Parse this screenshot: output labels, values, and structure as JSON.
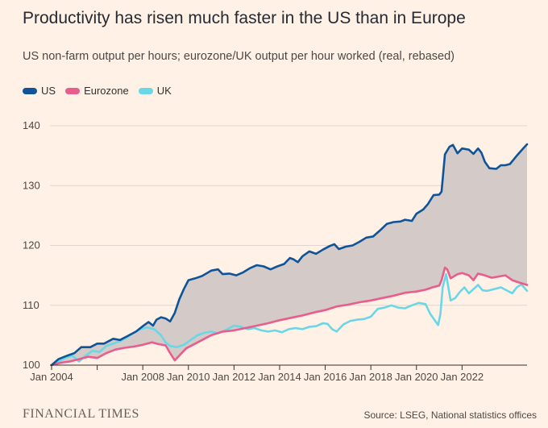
{
  "title": "Productivity has risen much faster in the US than in Europe",
  "subtitle": "US non-farm output per hours; eurozone/UK output per hour worked (real, rebased)",
  "legend": [
    {
      "label": "US",
      "color": "#0f5499"
    },
    {
      "label": "Eurozone",
      "color": "#e95d8c"
    },
    {
      "label": "UK",
      "color": "#6ad7e6"
    }
  ],
  "source": "Source: LSEG, National statistics offices",
  "publisher": "FINANCIAL TIMES",
  "colors": {
    "background": "#fff1e5",
    "band_fill": "#d4cbc8",
    "gridline": "#e0d6cd",
    "axis": "#33302e"
  },
  "chart_data": {
    "type": "line",
    "title": "Productivity has risen much faster in the US than in Europe",
    "ylim": [
      100,
      140
    ],
    "yticks": [
      100,
      110,
      120,
      130,
      140
    ],
    "xlim": [
      2004.0,
      2023.9
    ],
    "xticks": [
      {
        "value": 2004.0,
        "label": "Jan 2004"
      },
      {
        "value": 2006.0,
        "label": ""
      },
      {
        "value": 2008.0,
        "label": "Jan 2008"
      },
      {
        "value": 2010.0,
        "label": "Jan 2010"
      },
      {
        "value": 2012.0,
        "label": "Jan 2012"
      },
      {
        "value": 2014.0,
        "label": "Jan 2014"
      },
      {
        "value": 2016.0,
        "label": "Jan 2016"
      },
      {
        "value": 2018.0,
        "label": "Jan 2018"
      },
      {
        "value": 2020.0,
        "label": "Jan 2020"
      },
      {
        "value": 2022.0,
        "label": "Jan 2022"
      }
    ],
    "grid": true,
    "shaded_band_between": [
      "US",
      "Eurozone"
    ],
    "series": [
      {
        "name": "US",
        "color": "#0f5499",
        "points": [
          [
            2004.0,
            100.0
          ],
          [
            2004.3,
            101.0
          ],
          [
            2004.7,
            101.6
          ],
          [
            2005.0,
            102.0
          ],
          [
            2005.3,
            103.0
          ],
          [
            2005.7,
            103.0
          ],
          [
            2006.0,
            103.6
          ],
          [
            2006.3,
            103.6
          ],
          [
            2006.7,
            104.4
          ],
          [
            2007.0,
            104.2
          ],
          [
            2007.3,
            104.8
          ],
          [
            2007.7,
            105.6
          ],
          [
            2008.0,
            106.5
          ],
          [
            2008.25,
            107.2
          ],
          [
            2008.45,
            106.6
          ],
          [
            2008.6,
            107.6
          ],
          [
            2008.8,
            108.0
          ],
          [
            2009.0,
            107.8
          ],
          [
            2009.2,
            107.3
          ],
          [
            2009.4,
            108.7
          ],
          [
            2009.6,
            111.0
          ],
          [
            2009.8,
            112.7
          ],
          [
            2010.0,
            114.2
          ],
          [
            2010.3,
            114.5
          ],
          [
            2010.6,
            114.9
          ],
          [
            2011.0,
            115.8
          ],
          [
            2011.3,
            116.0
          ],
          [
            2011.5,
            115.2
          ],
          [
            2011.8,
            115.3
          ],
          [
            2012.1,
            115.0
          ],
          [
            2012.4,
            115.5
          ],
          [
            2012.7,
            116.2
          ],
          [
            2013.0,
            116.7
          ],
          [
            2013.3,
            116.5
          ],
          [
            2013.6,
            116.0
          ],
          [
            2013.9,
            116.5
          ],
          [
            2014.2,
            116.9
          ],
          [
            2014.45,
            117.9
          ],
          [
            2014.6,
            117.7
          ],
          [
            2014.8,
            117.2
          ],
          [
            2015.0,
            118.2
          ],
          [
            2015.3,
            119.0
          ],
          [
            2015.6,
            118.6
          ],
          [
            2015.9,
            119.3
          ],
          [
            2016.2,
            119.9
          ],
          [
            2016.4,
            120.2
          ],
          [
            2016.6,
            119.4
          ],
          [
            2016.9,
            119.8
          ],
          [
            2017.2,
            120.0
          ],
          [
            2017.5,
            120.6
          ],
          [
            2017.8,
            121.3
          ],
          [
            2018.1,
            121.5
          ],
          [
            2018.4,
            122.5
          ],
          [
            2018.7,
            123.6
          ],
          [
            2019.0,
            123.9
          ],
          [
            2019.3,
            124.0
          ],
          [
            2019.5,
            124.3
          ],
          [
            2019.8,
            124.1
          ],
          [
            2020.0,
            125.3
          ],
          [
            2020.3,
            126.0
          ],
          [
            2020.5,
            126.9
          ],
          [
            2020.75,
            128.4
          ],
          [
            2021.0,
            128.5
          ],
          [
            2021.1,
            129.0
          ],
          [
            2021.25,
            135.2
          ],
          [
            2021.45,
            136.5
          ],
          [
            2021.6,
            136.8
          ],
          [
            2021.8,
            135.4
          ],
          [
            2022.0,
            136.2
          ],
          [
            2022.3,
            136.0
          ],
          [
            2022.5,
            135.3
          ],
          [
            2022.7,
            136.2
          ],
          [
            2022.85,
            135.5
          ],
          [
            2023.0,
            134.0
          ],
          [
            2023.2,
            132.9
          ],
          [
            2023.5,
            132.8
          ],
          [
            2023.7,
            133.4
          ],
          [
            2023.9,
            133.4
          ],
          [
            2024.1,
            133.6
          ],
          [
            2024.4,
            135.0
          ],
          [
            2024.7,
            136.3
          ],
          [
            2024.85,
            136.9
          ]
        ]
      },
      {
        "name": "Eurozone",
        "color": "#e95d8c",
        "points": [
          [
            2004.0,
            100.0
          ],
          [
            2004.4,
            100.4
          ],
          [
            2004.8,
            100.6
          ],
          [
            2005.2,
            101.0
          ],
          [
            2005.6,
            101.4
          ],
          [
            2006.0,
            101.2
          ],
          [
            2006.4,
            102.0
          ],
          [
            2006.8,
            102.6
          ],
          [
            2007.2,
            102.9
          ],
          [
            2007.6,
            103.1
          ],
          [
            2008.0,
            103.4
          ],
          [
            2008.4,
            103.8
          ],
          [
            2008.7,
            103.5
          ],
          [
            2009.0,
            103.3
          ],
          [
            2009.2,
            102.0
          ],
          [
            2009.4,
            100.8
          ],
          [
            2009.6,
            101.6
          ],
          [
            2009.9,
            102.8
          ],
          [
            2010.2,
            103.4
          ],
          [
            2010.6,
            104.2
          ],
          [
            2011.0,
            105.0
          ],
          [
            2011.5,
            105.6
          ],
          [
            2012.0,
            105.8
          ],
          [
            2012.5,
            106.2
          ],
          [
            2013.0,
            106.6
          ],
          [
            2013.5,
            107.0
          ],
          [
            2014.0,
            107.5
          ],
          [
            2014.5,
            107.9
          ],
          [
            2015.0,
            108.3
          ],
          [
            2015.5,
            108.8
          ],
          [
            2016.0,
            109.2
          ],
          [
            2016.5,
            109.8
          ],
          [
            2017.0,
            110.1
          ],
          [
            2017.5,
            110.5
          ],
          [
            2018.0,
            110.8
          ],
          [
            2018.5,
            111.2
          ],
          [
            2019.0,
            111.6
          ],
          [
            2019.5,
            112.1
          ],
          [
            2020.0,
            112.3
          ],
          [
            2020.4,
            112.6
          ],
          [
            2020.7,
            113.0
          ],
          [
            2021.0,
            113.3
          ],
          [
            2021.1,
            114.2
          ],
          [
            2021.25,
            116.3
          ],
          [
            2021.35,
            116.0
          ],
          [
            2021.5,
            114.5
          ],
          [
            2021.8,
            115.2
          ],
          [
            2022.0,
            115.4
          ],
          [
            2022.3,
            115.0
          ],
          [
            2022.5,
            114.2
          ],
          [
            2022.7,
            115.3
          ],
          [
            2023.0,
            115.0
          ],
          [
            2023.3,
            114.6
          ],
          [
            2023.6,
            114.8
          ],
          [
            2023.9,
            115.0
          ],
          [
            2024.2,
            114.2
          ],
          [
            2024.5,
            113.8
          ],
          [
            2024.85,
            113.4
          ]
        ]
      },
      {
        "name": "UK",
        "color": "#6ad7e6",
        "points": [
          [
            2004.0,
            100.0
          ],
          [
            2004.3,
            100.6
          ],
          [
            2004.6,
            101.2
          ],
          [
            2004.9,
            101.6
          ],
          [
            2005.2,
            100.6
          ],
          [
            2005.5,
            101.6
          ],
          [
            2005.8,
            102.4
          ],
          [
            2006.1,
            102.2
          ],
          [
            2006.4,
            103.2
          ],
          [
            2006.7,
            103.6
          ],
          [
            2007.0,
            104.0
          ],
          [
            2007.3,
            104.6
          ],
          [
            2007.6,
            105.4
          ],
          [
            2007.9,
            106.0
          ],
          [
            2008.2,
            106.3
          ],
          [
            2008.5,
            106.0
          ],
          [
            2008.8,
            105.0
          ],
          [
            2009.0,
            103.8
          ],
          [
            2009.2,
            103.2
          ],
          [
            2009.5,
            103.0
          ],
          [
            2009.8,
            103.4
          ],
          [
            2010.1,
            104.2
          ],
          [
            2010.4,
            105.0
          ],
          [
            2010.7,
            105.4
          ],
          [
            2011.0,
            105.6
          ],
          [
            2011.3,
            105.3
          ],
          [
            2011.6,
            105.8
          ],
          [
            2012.0,
            106.6
          ],
          [
            2012.3,
            106.4
          ],
          [
            2012.6,
            106.0
          ],
          [
            2012.9,
            106.2
          ],
          [
            2013.2,
            105.8
          ],
          [
            2013.5,
            105.6
          ],
          [
            2013.8,
            105.8
          ],
          [
            2014.1,
            105.5
          ],
          [
            2014.4,
            106.0
          ],
          [
            2014.7,
            106.2
          ],
          [
            2015.0,
            106.0
          ],
          [
            2015.3,
            106.4
          ],
          [
            2015.6,
            106.5
          ],
          [
            2015.9,
            107.0
          ],
          [
            2016.1,
            106.9
          ],
          [
            2016.3,
            106.0
          ],
          [
            2016.5,
            105.6
          ],
          [
            2016.8,
            106.8
          ],
          [
            2017.1,
            107.4
          ],
          [
            2017.4,
            107.6
          ],
          [
            2017.7,
            107.7
          ],
          [
            2018.0,
            108.1
          ],
          [
            2018.3,
            109.4
          ],
          [
            2018.6,
            109.6
          ],
          [
            2018.9,
            110.0
          ],
          [
            2019.2,
            109.6
          ],
          [
            2019.5,
            109.5
          ],
          [
            2019.8,
            110.0
          ],
          [
            2020.1,
            110.4
          ],
          [
            2020.4,
            110.2
          ],
          [
            2020.6,
            108.6
          ],
          [
            2020.8,
            107.5
          ],
          [
            2020.95,
            106.7
          ],
          [
            2021.05,
            108.5
          ],
          [
            2021.15,
            113.0
          ],
          [
            2021.3,
            115.2
          ],
          [
            2021.5,
            110.8
          ],
          [
            2021.7,
            111.2
          ],
          [
            2021.9,
            112.2
          ],
          [
            2022.1,
            113.0
          ],
          [
            2022.3,
            112.0
          ],
          [
            2022.5,
            112.7
          ],
          [
            2022.7,
            113.4
          ],
          [
            2022.9,
            112.5
          ],
          [
            2023.1,
            112.4
          ],
          [
            2023.4,
            112.7
          ],
          [
            2023.7,
            113.0
          ],
          [
            2024.0,
            112.4
          ],
          [
            2024.2,
            112.0
          ],
          [
            2024.4,
            113.0
          ],
          [
            2024.6,
            113.5
          ],
          [
            2024.85,
            112.4
          ]
        ]
      }
    ]
  }
}
